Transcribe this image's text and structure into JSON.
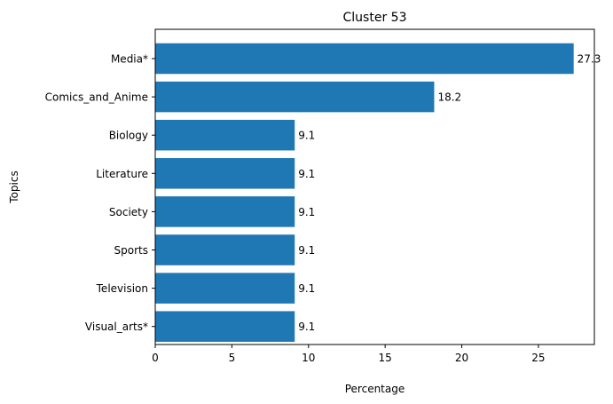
{
  "chart_data": {
    "type": "bar",
    "orientation": "horizontal",
    "title": "Cluster 53",
    "xlabel": "Percentage",
    "ylabel": "Topics",
    "categories": [
      "Media*",
      "Comics_and_Anime",
      "Biology",
      "Literature",
      "Society",
      "Sports",
      "Television",
      "Visual_arts*"
    ],
    "values": [
      27.3,
      18.2,
      9.1,
      9.1,
      9.1,
      9.1,
      9.1,
      9.1
    ],
    "value_labels": [
      "27.3",
      "18.2",
      "9.1",
      "9.1",
      "9.1",
      "9.1",
      "9.1",
      "9.1"
    ],
    "xlim": [
      0,
      28.65
    ],
    "xticks": [
      0,
      5,
      10,
      15,
      20,
      25
    ],
    "xtick_labels": [
      "0",
      "5",
      "10",
      "15",
      "20",
      "25"
    ],
    "bar_color": "#1f77b4",
    "grid": false,
    "legend": "none"
  }
}
